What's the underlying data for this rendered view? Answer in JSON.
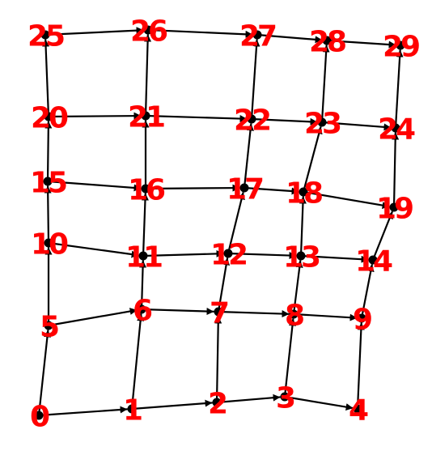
{
  "colors": {
    "edge": "#000000",
    "node": "#000000",
    "label": "#ff0000",
    "background": "#ffffff"
  },
  "nodes": [
    {
      "id": "0",
      "label": "0"
    },
    {
      "id": "1",
      "label": "1"
    },
    {
      "id": "2",
      "label": "2"
    },
    {
      "id": "3",
      "label": "3"
    },
    {
      "id": "4",
      "label": "4"
    },
    {
      "id": "5",
      "label": "5"
    },
    {
      "id": "6",
      "label": "6"
    },
    {
      "id": "7",
      "label": "7"
    },
    {
      "id": "8",
      "label": "8"
    },
    {
      "id": "9",
      "label": "9"
    },
    {
      "id": "10",
      "label": "10"
    },
    {
      "id": "11",
      "label": "11"
    },
    {
      "id": "12",
      "label": "12"
    },
    {
      "id": "13",
      "label": "13"
    },
    {
      "id": "14",
      "label": "14"
    },
    {
      "id": "15",
      "label": "15"
    },
    {
      "id": "16",
      "label": "16"
    },
    {
      "id": "17",
      "label": "17"
    },
    {
      "id": "18",
      "label": "18"
    },
    {
      "id": "19",
      "label": "19"
    },
    {
      "id": "20",
      "label": "20"
    },
    {
      "id": "21",
      "label": "21"
    },
    {
      "id": "22",
      "label": "22"
    },
    {
      "id": "23",
      "label": "23"
    },
    {
      "id": "24",
      "label": "24"
    },
    {
      "id": "25",
      "label": "25"
    },
    {
      "id": "26",
      "label": "26"
    },
    {
      "id": "27",
      "label": "27"
    },
    {
      "id": "28",
      "label": "28"
    },
    {
      "id": "29",
      "label": "29"
    }
  ],
  "edges": [
    [
      "0",
      "1"
    ],
    [
      "1",
      "2"
    ],
    [
      "2",
      "3"
    ],
    [
      "3",
      "4"
    ],
    [
      "5",
      "6"
    ],
    [
      "6",
      "7"
    ],
    [
      "7",
      "8"
    ],
    [
      "8",
      "9"
    ],
    [
      "10",
      "11"
    ],
    [
      "11",
      "12"
    ],
    [
      "12",
      "13"
    ],
    [
      "13",
      "14"
    ],
    [
      "15",
      "16"
    ],
    [
      "16",
      "17"
    ],
    [
      "17",
      "18"
    ],
    [
      "18",
      "19"
    ],
    [
      "20",
      "21"
    ],
    [
      "21",
      "22"
    ],
    [
      "22",
      "23"
    ],
    [
      "23",
      "24"
    ],
    [
      "25",
      "26"
    ],
    [
      "26",
      "27"
    ],
    [
      "27",
      "28"
    ],
    [
      "28",
      "29"
    ],
    [
      "0",
      "5"
    ],
    [
      "5",
      "10"
    ],
    [
      "10",
      "15"
    ],
    [
      "15",
      "20"
    ],
    [
      "20",
      "25"
    ],
    [
      "1",
      "6"
    ],
    [
      "6",
      "11"
    ],
    [
      "11",
      "16"
    ],
    [
      "16",
      "21"
    ],
    [
      "21",
      "26"
    ],
    [
      "2",
      "7"
    ],
    [
      "7",
      "12"
    ],
    [
      "12",
      "17"
    ],
    [
      "17",
      "22"
    ],
    [
      "22",
      "27"
    ],
    [
      "3",
      "8"
    ],
    [
      "8",
      "13"
    ],
    [
      "13",
      "18"
    ],
    [
      "18",
      "23"
    ],
    [
      "23",
      "28"
    ],
    [
      "4",
      "9"
    ],
    [
      "9",
      "14"
    ],
    [
      "14",
      "19"
    ],
    [
      "19",
      "24"
    ],
    [
      "24",
      "29"
    ]
  ]
}
